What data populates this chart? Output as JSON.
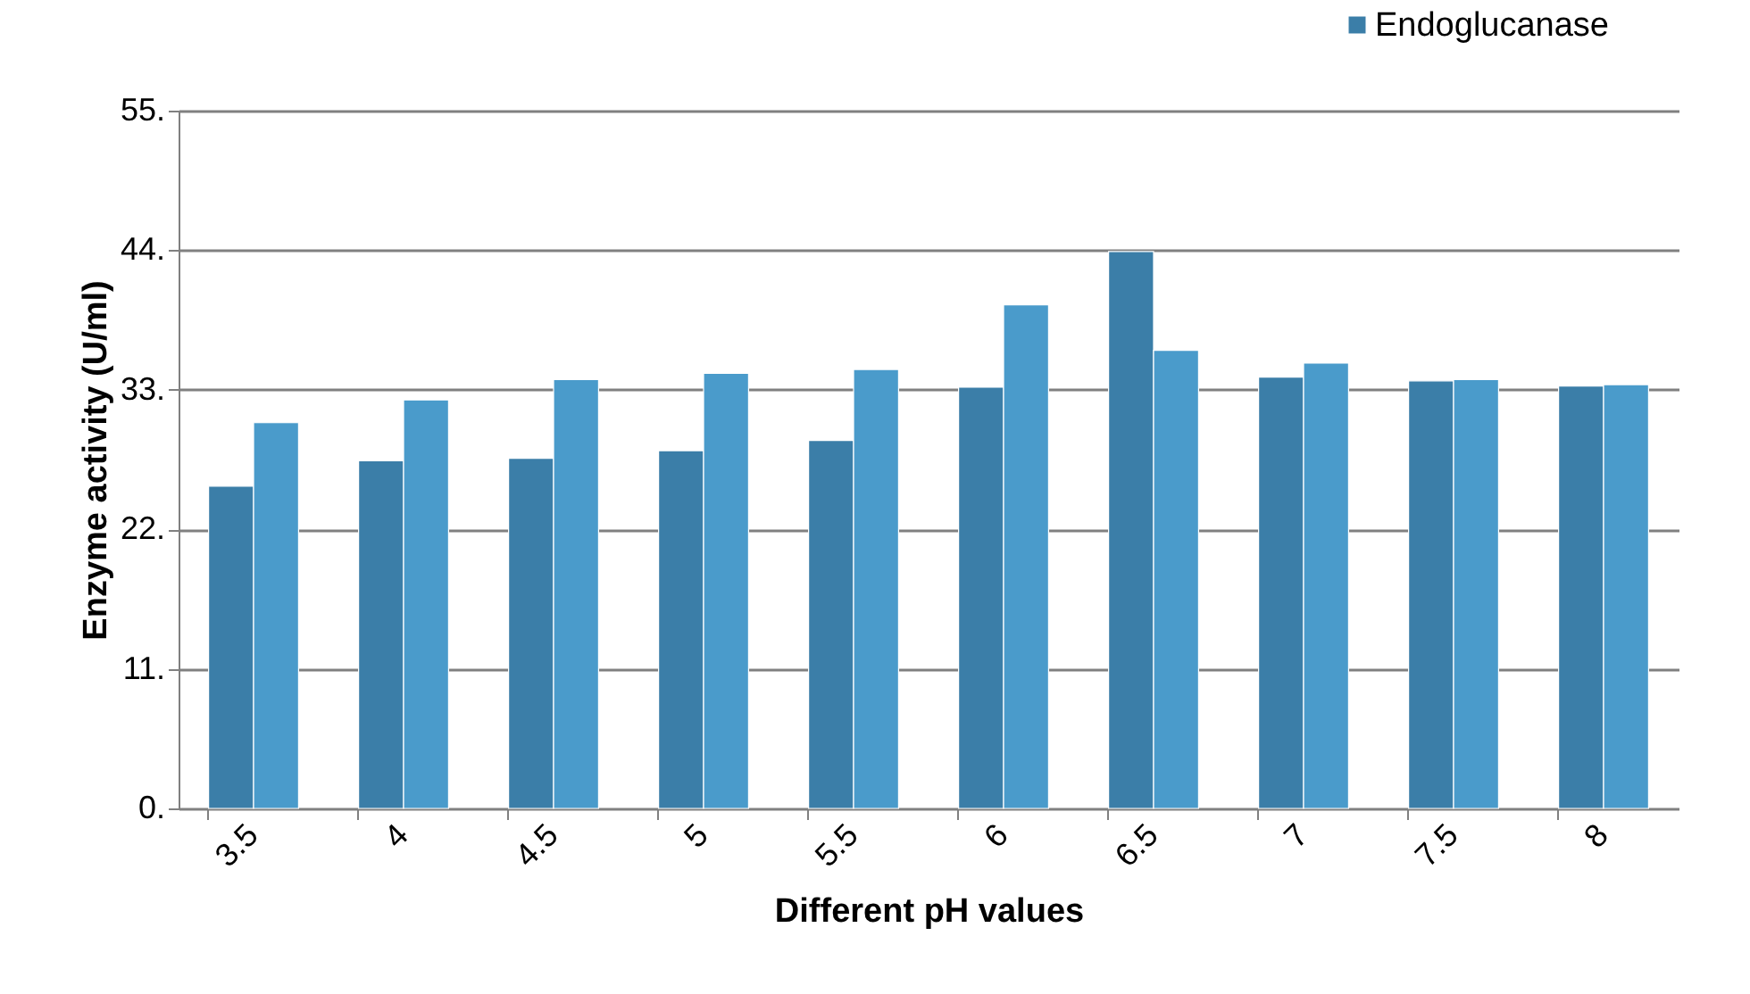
{
  "chart_data": {
    "type": "bar",
    "xlabel": "Different pH values",
    "ylabel": "Enzyme activity (U/ml)",
    "categories": [
      "3.5",
      "4",
      "4.5",
      "5",
      "5.5",
      "6",
      "6.5",
      "7",
      "7.5",
      "8"
    ],
    "series": [
      {
        "name": "Endoglucanase",
        "color": "#3b7ea8",
        "values": [
          25.4,
          27.4,
          27.6,
          28.2,
          29.0,
          33.2,
          43.9,
          34.0,
          33.7,
          33.3
        ]
      },
      {
        "color": "#4a9bcb",
        "values": [
          30.4,
          32.2,
          33.8,
          34.3,
          34.6,
          39.7,
          36.1,
          35.1,
          33.8,
          33.4
        ]
      }
    ],
    "ylim": [
      0,
      55
    ],
    "yticks": [
      {
        "value": 0,
        "label": "0."
      },
      {
        "value": 11,
        "label": "11."
      },
      {
        "value": 22,
        "label": "22."
      },
      {
        "value": 33,
        "label": "33."
      },
      {
        "value": 44,
        "label": "44."
      },
      {
        "value": 55,
        "label": "55."
      }
    ],
    "grid": "y",
    "legend": "top right"
  }
}
